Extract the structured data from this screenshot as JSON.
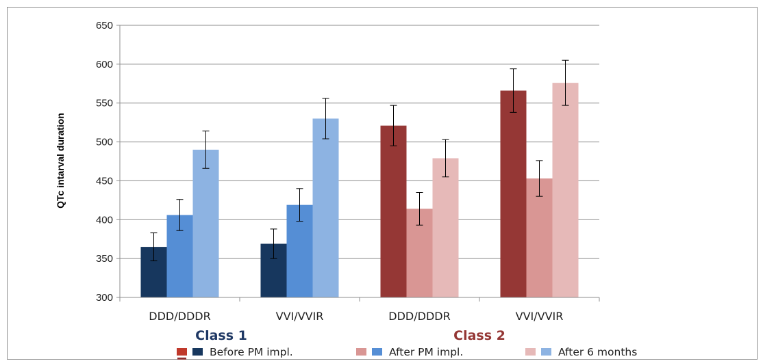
{
  "chart_data": {
    "type": "bar",
    "ylabel": "QTc intarval duration",
    "xlabel": "",
    "ylim": [
      300,
      650
    ],
    "yticks": [
      300,
      350,
      400,
      450,
      500,
      550,
      600,
      650
    ],
    "categories": [
      "DDD/DDDR",
      "VVI/VVIR",
      "DDD/DDDR",
      "VVI/VVIR"
    ],
    "groups": [
      {
        "label": "Class 1",
        "color": "#1f3864",
        "categories": [
          0,
          1
        ]
      },
      {
        "label": "Class 2",
        "color": "#943634",
        "categories": [
          2,
          3
        ]
      }
    ],
    "series": [
      {
        "name": "Before PM impl.",
        "values": [
          365,
          369,
          521,
          566
        ],
        "errors": [
          18,
          19,
          26,
          28
        ],
        "colors": [
          "#17375e",
          "#17375e",
          "#953735",
          "#953735"
        ]
      },
      {
        "name": "After PM impl.",
        "values": [
          406,
          419,
          414,
          453
        ],
        "errors": [
          20,
          21,
          21,
          23
        ],
        "colors": [
          "#558ed5",
          "#558ed5",
          "#d99694",
          "#d99694"
        ]
      },
      {
        "name": "After 6 months",
        "values": [
          490,
          530,
          479,
          576
        ],
        "errors": [
          24,
          26,
          24,
          29
        ],
        "colors": [
          "#8db3e2",
          "#8db3e2",
          "#e6b9b8",
          "#e6b9b8"
        ]
      }
    ],
    "legend": {
      "position": "bottom",
      "entries": [
        {
          "label": "Before PM impl.",
          "swatches": [
            "#c0392b",
            "#17375e"
          ]
        },
        {
          "label": "After PM impl.",
          "swatches": [
            "#d99694",
            "#558ed5"
          ]
        },
        {
          "label": "After 6 months",
          "swatches": [
            "#e6b9b8",
            "#8db3e2"
          ]
        }
      ]
    },
    "grid": true,
    "error_bars": true
  }
}
